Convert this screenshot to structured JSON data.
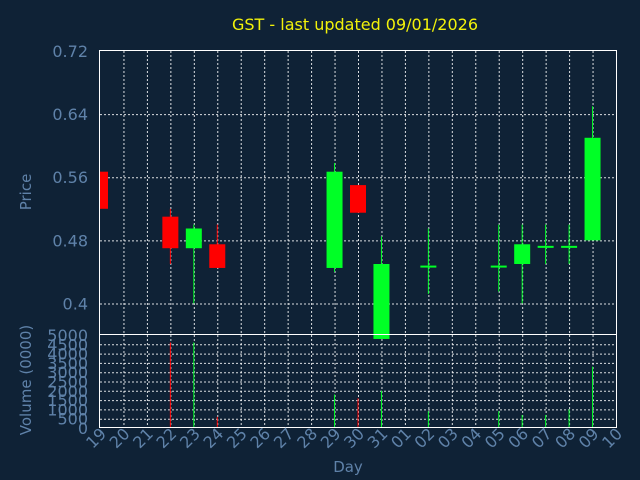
{
  "chart_data": {
    "type": "candlestick",
    "title": "GST - last updated 09/01/2026",
    "xlabel": "Day",
    "colors": {
      "up": "#00ff26",
      "down": "#ff0000",
      "grid": "#ffffff",
      "background": "#0f2236",
      "title": "#f2f20a",
      "text": "#5f82a9"
    },
    "x_ticks": [
      "19",
      "20",
      "21",
      "22",
      "23",
      "24",
      "25",
      "26",
      "27",
      "28",
      "29",
      "30",
      "31",
      "01",
      "02",
      "03",
      "04",
      "05",
      "06",
      "07",
      "08",
      "09",
      "10"
    ],
    "price_panel": {
      "ylabel": "Price",
      "ylim": [
        0.36,
        0.72
      ],
      "y_ticks": [
        0.4,
        0.48,
        0.56,
        0.64,
        0.72
      ],
      "y_tick_labels": [
        "0.4",
        "0.48",
        "0.56",
        "0.64",
        "0.72"
      ]
    },
    "volume_panel": {
      "ylabel": "Volume (0000)",
      "ylim": [
        0,
        5000
      ],
      "y_ticks": [
        0,
        500,
        1000,
        1500,
        2000,
        2500,
        3000,
        3500,
        4000,
        4500,
        5000
      ],
      "y_tick_labels": [
        "0",
        "500",
        "1000",
        "1500",
        "2000",
        "2500",
        "3000",
        "3500",
        "4000",
        "4500",
        "5000"
      ]
    },
    "candles": [
      {
        "x": "19",
        "open": 0.567,
        "high": 0.567,
        "low": 0.52,
        "close": 0.52,
        "volume": 0
      },
      {
        "x": "22",
        "open": 0.51,
        "high": 0.52,
        "low": 0.45,
        "close": 0.47,
        "volume": 4600
      },
      {
        "x": "23",
        "open": 0.47,
        "high": 0.5,
        "low": 0.4,
        "close": 0.495,
        "volume": 4600
      },
      {
        "x": "24",
        "open": 0.475,
        "high": 0.5,
        "low": 0.445,
        "close": 0.445,
        "volume": 600
      },
      {
        "x": "29",
        "open": 0.445,
        "high": 0.578,
        "low": 0.44,
        "close": 0.567,
        "volume": 1800
      },
      {
        "x": "30",
        "open": 0.55,
        "high": 0.55,
        "low": 0.515,
        "close": 0.515,
        "volume": 1600
      },
      {
        "x": "31",
        "open": 0.355,
        "high": 0.485,
        "low": 0.355,
        "close": 0.45,
        "volume": 2000
      },
      {
        "x": "02",
        "open": 0.448,
        "high": 0.495,
        "low": 0.412,
        "close": 0.448,
        "volume": 900
      },
      {
        "x": "05",
        "open": 0.448,
        "high": 0.5,
        "low": 0.415,
        "close": 0.448,
        "volume": 900
      },
      {
        "x": "06",
        "open": 0.45,
        "high": 0.5,
        "low": 0.4,
        "close": 0.475,
        "volume": 700
      },
      {
        "x": "07",
        "open": 0.473,
        "high": 0.5,
        "low": 0.45,
        "close": 0.473,
        "volume": 700
      },
      {
        "x": "08",
        "open": 0.473,
        "high": 0.5,
        "low": 0.45,
        "close": 0.473,
        "volume": 1000
      },
      {
        "x": "09",
        "open": 0.48,
        "high": 0.65,
        "low": 0.48,
        "close": 0.61,
        "volume": 3300
      }
    ]
  }
}
